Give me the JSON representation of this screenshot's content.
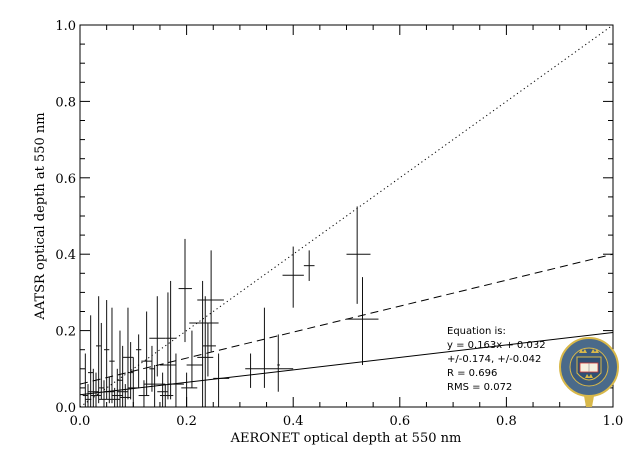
{
  "chart_data": {
    "type": "scatter",
    "title": "",
    "xlabel": "AERONET optical depth at 550 nm",
    "ylabel": "AATSR optical depth at 550 nm",
    "xlim": [
      0,
      1
    ],
    "ylim": [
      0,
      1
    ],
    "xticks": [
      "0.0",
      "0.2",
      "0.4",
      "0.6",
      "0.8",
      "1.0"
    ],
    "yticks": [
      "0.0",
      "0.2",
      "0.4",
      "0.6",
      "0.8",
      "1.0"
    ],
    "grid": false,
    "points_columns": [
      "x",
      "y",
      "x_low",
      "x_high",
      "y_low",
      "y_high"
    ],
    "points": [
      [
        0.52,
        0.4,
        0.5,
        0.545,
        0.27,
        0.525
      ],
      [
        0.53,
        0.23,
        0.5,
        0.56,
        0.11,
        0.34
      ],
      [
        0.4,
        0.345,
        0.38,
        0.42,
        0.26,
        0.42
      ],
      [
        0.43,
        0.37,
        0.42,
        0.44,
        0.33,
        0.41
      ],
      [
        0.197,
        0.31,
        0.185,
        0.21,
        0.17,
        0.44
      ],
      [
        0.246,
        0.28,
        0.22,
        0.27,
        0.145,
        0.41
      ],
      [
        0.23,
        0.22,
        0.205,
        0.26,
        0.0,
        0.33
      ],
      [
        0.346,
        0.1,
        0.31,
        0.4,
        0.05,
        0.26
      ],
      [
        0.372,
        0.11,
        0.37,
        0.375,
        0.04,
        0.19
      ],
      [
        0.26,
        0.075,
        0.25,
        0.28,
        0.0,
        0.14
      ],
      [
        0.32,
        0.1,
        0.32,
        0.32,
        0.05,
        0.14
      ],
      [
        0.17,
        0.18,
        0.16,
        0.18,
        0.02,
        0.33
      ],
      [
        0.165,
        0.11,
        0.15,
        0.18,
        0.02,
        0.3
      ],
      [
        0.145,
        0.18,
        0.13,
        0.16,
        0.08,
        0.29
      ],
      [
        0.125,
        0.12,
        0.115,
        0.135,
        0.03,
        0.25
      ],
      [
        0.11,
        0.15,
        0.105,
        0.115,
        0.05,
        0.19
      ],
      [
        0.09,
        0.13,
        0.08,
        0.1,
        0.02,
        0.26
      ],
      [
        0.06,
        0.12,
        0.055,
        0.065,
        0.01,
        0.26
      ],
      [
        0.05,
        0.15,
        0.045,
        0.055,
        0.02,
        0.28
      ],
      [
        0.035,
        0.16,
        0.03,
        0.04,
        0.01,
        0.29
      ],
      [
        0.02,
        0.09,
        0.015,
        0.025,
        0.0,
        0.24
      ],
      [
        0.025,
        0.04,
        0.015,
        0.035,
        0.0,
        0.1
      ],
      [
        0.18,
        0.06,
        0.165,
        0.195,
        0.0,
        0.14
      ],
      [
        0.2,
        0.05,
        0.19,
        0.22,
        0.0,
        0.09
      ],
      [
        0.21,
        0.11,
        0.2,
        0.23,
        0.05,
        0.2
      ],
      [
        0.235,
        0.13,
        0.22,
        0.25,
        0.0,
        0.29
      ],
      [
        0.24,
        0.16,
        0.23,
        0.255,
        0.08,
        0.22
      ],
      [
        0.14,
        0.06,
        0.12,
        0.16,
        0.0,
        0.11
      ],
      [
        0.1,
        0.05,
        0.09,
        0.11,
        0.0,
        0.13
      ],
      [
        0.08,
        0.04,
        0.07,
        0.09,
        0.0,
        0.16
      ],
      [
        0.07,
        0.03,
        0.06,
        0.08,
        0.0,
        0.1
      ],
      [
        0.045,
        0.02,
        0.035,
        0.055,
        0.0,
        0.07
      ],
      [
        0.03,
        0.03,
        0.02,
        0.04,
        0.0,
        0.09
      ],
      [
        0.015,
        0.02,
        0.01,
        0.02,
        0.0,
        0.06
      ],
      [
        0.01,
        0.03,
        0.005,
        0.015,
        0.0,
        0.14
      ],
      [
        0.055,
        0.04,
        0.045,
        0.065,
        0.01,
        0.08
      ],
      [
        0.065,
        0.02,
        0.055,
        0.075,
        0.0,
        0.05
      ],
      [
        0.085,
        0.025,
        0.075,
        0.095,
        0.0,
        0.06
      ],
      [
        0.12,
        0.03,
        0.11,
        0.13,
        0.0,
        0.07
      ],
      [
        0.155,
        0.04,
        0.145,
        0.165,
        0.0,
        0.09
      ],
      [
        0.16,
        0.03,
        0.15,
        0.175,
        0.0,
        0.06
      ],
      [
        0.04,
        0.05,
        0.035,
        0.045,
        0.02,
        0.22
      ],
      [
        0.095,
        0.09,
        0.09,
        0.1,
        0.02,
        0.17
      ],
      [
        0.135,
        0.1,
        0.13,
        0.14,
        0.04,
        0.16
      ],
      [
        0.075,
        0.07,
        0.07,
        0.08,
        0.0,
        0.2
      ]
    ],
    "lines": [
      {
        "style": "dotted",
        "slope": 1.0,
        "intercept": 0.0
      },
      {
        "style": "dashed",
        "slope": 0.34,
        "intercept": 0.06
      },
      {
        "style": "solid",
        "slope": 0.163,
        "intercept": 0.032
      }
    ],
    "annotation": [
      "Equation is:",
      "y = 0.163x + 0.032",
      "+/-0.174, +/-0.042",
      "R = 0.696",
      "RMS = 0.072"
    ],
    "logo": "University of Oxford crest",
    "colors": {
      "logo_blue": "#4a6a8a",
      "logo_gold": "#d8b84a"
    }
  }
}
